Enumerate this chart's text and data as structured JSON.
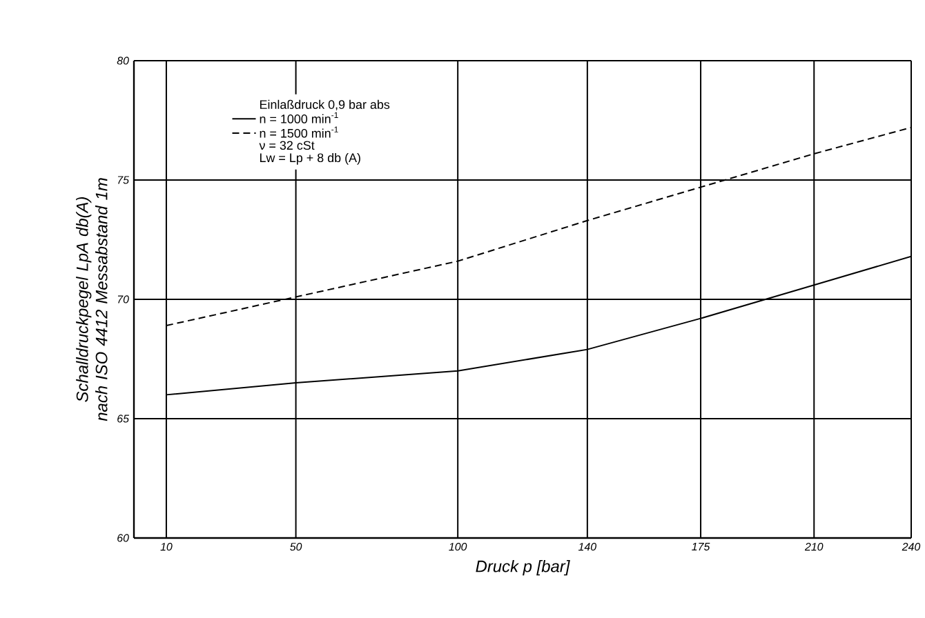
{
  "chart_data": {
    "type": "line",
    "xlabel": "Druck p [bar]",
    "ylabel": "Schalldruckpegel LpA db(A) nach ISO 4412 Messabstand 1m",
    "legend_title": "Einlaßdruck 0,9 bar abs",
    "x": [
      10,
      50,
      100,
      140,
      175,
      210,
      240
    ],
    "series": [
      {
        "name": "n = 1000 min$^{-1}$",
        "color": "#000000",
        "line_style": "solid",
        "values": [
          66.0,
          66.5,
          67.0,
          67.9,
          69.2,
          70.6,
          71.8
        ]
      },
      {
        "name": "n = 1500 min$^{-1}$",
        "color": "#000000",
        "line_style": "dashed",
        "values": [
          68.9,
          70.1,
          71.6,
          73.3,
          74.7,
          76.1,
          77.2
        ]
      }
    ],
    "annotations": [
      "ν = 32 cSt",
      "Lw = Lp + 8 db (A)"
    ],
    "xlim": [
      0,
      240
    ],
    "ylim": [
      60,
      80
    ],
    "xticks": [
      10,
      50,
      100,
      140,
      175,
      210,
      240
    ],
    "yticks": [
      60,
      65,
      70,
      75,
      80
    ],
    "grid": true,
    "legend": "top left",
    "marker": "none"
  }
}
